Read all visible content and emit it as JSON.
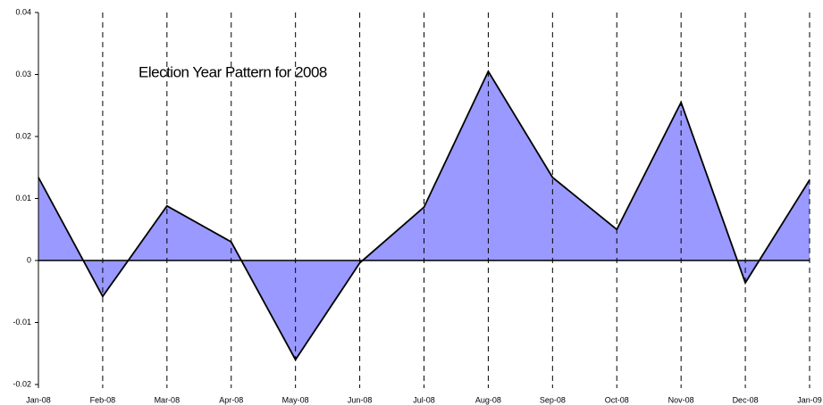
{
  "chart_data": {
    "type": "area",
    "title": "Election Year Pattern for 2008",
    "categories": [
      "Jan-08",
      "Feb-08",
      "Mar-08",
      "Apr-08",
      "May-08",
      "Jun-08",
      "Jul-08",
      "Aug-08",
      "Sep-08",
      "Oct-08",
      "Nov-08",
      "Dec-08",
      "Jan-09"
    ],
    "values": [
      0.0134,
      -0.0058,
      0.0088,
      0.003,
      -0.016,
      -0.0004,
      0.0086,
      0.0305,
      0.0134,
      0.005,
      0.0255,
      -0.0036,
      0.013
    ],
    "color": "#9999ff",
    "ylim": [
      -0.02,
      0.04
    ],
    "yticks": [
      -0.02,
      -0.01,
      0,
      0.01,
      0.02,
      0.03,
      0.04
    ],
    "grid": true
  }
}
